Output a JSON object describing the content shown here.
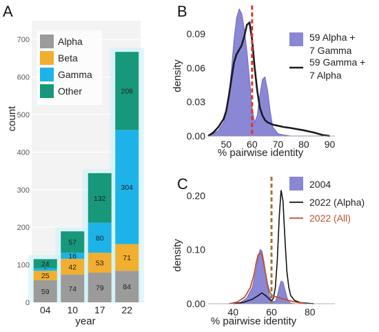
{
  "colors": {
    "alpha": "#9b9b9b",
    "beta": "#f2ae2e",
    "gamma": "#1eb3e8",
    "other": "#17987a",
    "density_fill": "#8a87d4",
    "density_line": "#1a1a1a",
    "red_dash": "#e0352b",
    "brown_dash": "#a0752d",
    "all_line": "#c24e2c"
  },
  "chart_data": [
    {
      "type": "bar",
      "panel_label": "A",
      "stacked": true,
      "categories": [
        "04",
        "10",
        "17",
        "22"
      ],
      "xlabel": "year",
      "ylabel": "count",
      "ylim": [
        0,
        750
      ],
      "yticks": [
        0,
        100,
        200,
        300,
        400,
        500,
        600,
        700
      ],
      "series": [
        {
          "name": "Alpha",
          "values": [
            59,
            74,
            79,
            84
          ],
          "value_labels": [
            "59",
            "74",
            "79",
            "84"
          ]
        },
        {
          "name": "Beta",
          "values": [
            25,
            42,
            53,
            71
          ],
          "value_labels": [
            "25",
            "42",
            "53",
            "71"
          ]
        },
        {
          "name": "Gamma",
          "values": [
            7,
            16,
            80,
            304
          ],
          "value_labels": [
            "7",
            "16",
            "80",
            "304"
          ]
        },
        {
          "name": "Other",
          "values": [
            24,
            57,
            132,
            208
          ],
          "value_labels": [
            "24",
            "57",
            "132",
            "208"
          ]
        }
      ],
      "legend_position": "top-left"
    },
    {
      "type": "area",
      "panel_label": "B",
      "xlabel": "% pairwise identity",
      "ylabel": "density",
      "xlim": [
        43,
        92
      ],
      "ylim": [
        0,
        0.115
      ],
      "xticks": [
        50,
        60,
        70,
        80,
        90
      ],
      "yticks": [
        0.0,
        0.03,
        0.06,
        0.09
      ],
      "ytick_labels": [
        "0.00",
        "0.03",
        "0.06",
        "0.09"
      ],
      "reference_line_x": 60,
      "legend_position": "right",
      "series": [
        {
          "name": "59 Alpha + 7 Gamma",
          "style": "filled",
          "x": [
            43,
            45,
            47,
            49,
            50,
            51,
            52,
            53,
            54,
            55,
            56,
            57,
            58,
            59,
            60,
            61,
            62,
            63,
            64,
            65,
            66,
            67,
            68,
            70,
            72,
            75,
            80,
            85,
            90
          ],
          "y": [
            0.0,
            0.002,
            0.005,
            0.012,
            0.02,
            0.035,
            0.058,
            0.085,
            0.104,
            0.112,
            0.108,
            0.094,
            0.075,
            0.05,
            0.025,
            0.012,
            0.018,
            0.036,
            0.05,
            0.052,
            0.04,
            0.022,
            0.008,
            0.002,
            0.001,
            0.0,
            0.0,
            0.0,
            0.0
          ]
        },
        {
          "name": "59 Gamma + 7 Alpha",
          "style": "line",
          "x": [
            43,
            45,
            47,
            49,
            50,
            51,
            52,
            53,
            54,
            55,
            56,
            57,
            58,
            59,
            60,
            61,
            62,
            63,
            64,
            65,
            66,
            67,
            68,
            70,
            72,
            75,
            80,
            84,
            87,
            90
          ],
          "y": [
            0.0,
            0.003,
            0.008,
            0.015,
            0.022,
            0.035,
            0.05,
            0.065,
            0.072,
            0.076,
            0.08,
            0.088,
            0.098,
            0.1,
            0.085,
            0.06,
            0.04,
            0.025,
            0.018,
            0.014,
            0.012,
            0.011,
            0.01,
            0.009,
            0.008,
            0.007,
            0.005,
            0.003,
            0.001,
            0.0
          ]
        }
      ]
    },
    {
      "type": "area",
      "panel_label": "C",
      "xlabel": "% pairwise identity",
      "ylabel": "density",
      "xlim": [
        27,
        93
      ],
      "ylim": [
        0,
        0.235
      ],
      "xticks": [
        40,
        60,
        80
      ],
      "yticks": [
        0.0,
        0.1,
        0.2
      ],
      "ytick_labels": [
        "0.00",
        "0.10",
        "0.20"
      ],
      "reference_line_x": 60,
      "legend_position": "top-right",
      "series": [
        {
          "name": "2004",
          "style": "filled",
          "x": [
            40,
            44,
            47,
            50,
            52,
            53,
            54,
            55,
            56,
            57,
            58,
            59,
            60,
            61,
            62,
            63,
            64,
            65,
            66,
            67,
            68,
            69,
            70,
            72
          ],
          "y": [
            0.0,
            0.003,
            0.01,
            0.03,
            0.062,
            0.085,
            0.1,
            0.098,
            0.08,
            0.055,
            0.03,
            0.014,
            0.006,
            0.004,
            0.005,
            0.014,
            0.03,
            0.042,
            0.04,
            0.026,
            0.012,
            0.004,
            0.001,
            0.0
          ]
        },
        {
          "name": "2022 (Alpha)",
          "style": "line",
          "x": [
            40,
            45,
            50,
            53,
            55,
            57,
            59,
            60,
            61,
            62,
            63,
            64,
            65,
            66,
            67,
            68,
            69,
            70,
            72,
            75,
            78,
            82
          ],
          "y": [
            0.0,
            0.002,
            0.008,
            0.015,
            0.02,
            0.015,
            0.008,
            0.005,
            0.01,
            0.03,
            0.08,
            0.16,
            0.21,
            0.19,
            0.12,
            0.06,
            0.03,
            0.015,
            0.006,
            0.002,
            0.001,
            0.0
          ]
        },
        {
          "name": "2022 (All)",
          "style": "line",
          "x": [
            38,
            42,
            46,
            49,
            51,
            52,
            53,
            54,
            55,
            56,
            57,
            58,
            59,
            60,
            61,
            62,
            64,
            66,
            68,
            70,
            74,
            78
          ],
          "y": [
            0.0,
            0.003,
            0.012,
            0.03,
            0.055,
            0.075,
            0.09,
            0.094,
            0.09,
            0.075,
            0.055,
            0.035,
            0.022,
            0.016,
            0.014,
            0.013,
            0.011,
            0.009,
            0.007,
            0.005,
            0.002,
            0.0
          ]
        }
      ]
    }
  ]
}
